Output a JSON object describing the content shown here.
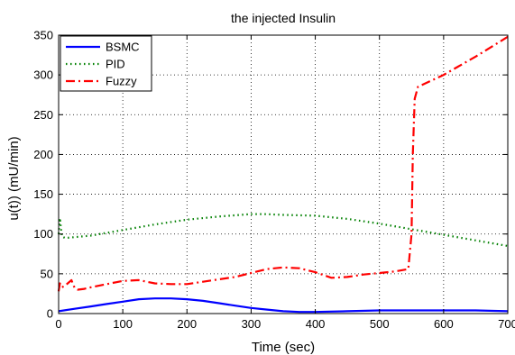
{
  "chart_data": {
    "type": "line",
    "title": "the  injected Insulin",
    "xlabel": "Time (sec)",
    "ylabel": "u(t)) (mU/min)",
    "xlim": [
      0,
      700
    ],
    "ylim": [
      0,
      350
    ],
    "xticks": [
      0,
      100,
      200,
      300,
      400,
      500,
      600,
      700
    ],
    "yticks": [
      0,
      50,
      100,
      150,
      200,
      250,
      300,
      350
    ],
    "grid": true,
    "legend": "top-left",
    "series": [
      {
        "name": "BSMC",
        "color": "#0000ff",
        "style": "solid",
        "x": [
          0,
          25,
          50,
          75,
          100,
          125,
          150,
          175,
          200,
          225,
          250,
          275,
          300,
          325,
          350,
          375,
          400,
          450,
          500,
          550,
          600,
          650,
          700
        ],
        "y": [
          3,
          6,
          9,
          12,
          15,
          18,
          19,
          19,
          18,
          16,
          13,
          10,
          7,
          5,
          3,
          2,
          2,
          3,
          4,
          4,
          4,
          4,
          3
        ]
      },
      {
        "name": "PID",
        "color": "#008000",
        "style": "dotted",
        "x": [
          0,
          2,
          5,
          10,
          25,
          50,
          100,
          150,
          200,
          250,
          300,
          320,
          350,
          400,
          450,
          500,
          550,
          600,
          650,
          700
        ],
        "y": [
          100,
          120,
          97,
          95,
          96,
          98,
          105,
          112,
          118,
          122,
          125,
          125,
          124,
          123,
          119,
          113,
          106,
          99,
          92,
          85
        ]
      },
      {
        "name": "Fuzzy",
        "color": "#ff0000",
        "style": "dashdot",
        "x": [
          0,
          2,
          5,
          10,
          20,
          25,
          30,
          40,
          50,
          75,
          100,
          125,
          150,
          175,
          200,
          225,
          250,
          275,
          300,
          325,
          350,
          375,
          400,
          425,
          450,
          475,
          500,
          525,
          545,
          550,
          552,
          555,
          560,
          600,
          650,
          700
        ],
        "y": [
          28,
          38,
          33,
          35,
          42,
          32,
          30,
          31,
          33,
          37,
          41,
          42,
          38,
          37,
          37,
          40,
          43,
          46,
          51,
          56,
          58,
          57,
          52,
          45,
          46,
          49,
          51,
          53,
          56,
          100,
          200,
          270,
          285,
          300,
          323,
          348
        ]
      }
    ]
  }
}
